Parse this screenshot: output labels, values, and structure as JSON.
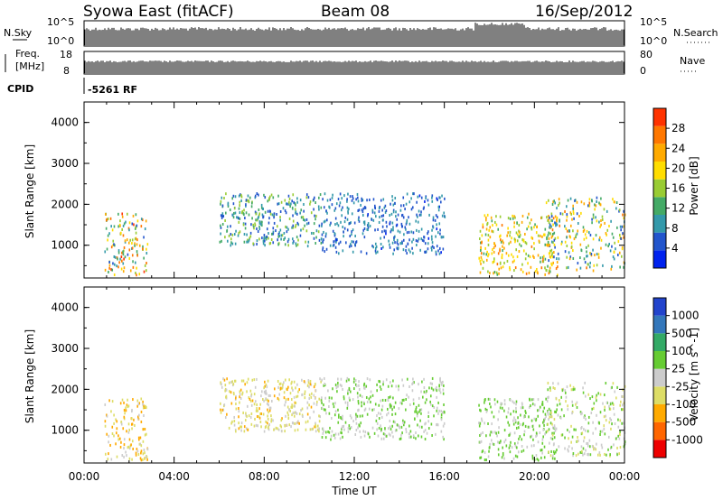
{
  "header": {
    "station": "Syowa East (fitACF)",
    "beam": "Beam 08",
    "date": "16/Sep/2012"
  },
  "top_panels": {
    "nsky_label": "N.Sky",
    "nsky_low_tick": "10^0",
    "nsky_high_tick": "10^5",
    "nsearch_label": "N.Search",
    "nsearch_low_tick": "10^0",
    "nsearch_high_tick": "10^5",
    "freq_label_line1": "Freq.",
    "freq_label_line2": "[MHz]",
    "freq_high_tick": "18",
    "freq_low_tick": "8",
    "nave_label": "Nave",
    "nave_high_tick": "80",
    "nave_low_tick": "0",
    "cpid_label": "CPID",
    "cpid_value": "-5261 RF"
  },
  "colors": {
    "power_bar": [
      "#0022ee",
      "#2255cc",
      "#3399aa",
      "#44aa66",
      "#99cc33",
      "#ffdd00",
      "#ffaa00",
      "#ff7700",
      "#ff3300"
    ],
    "velocity_bar": [
      "#ee0000",
      "#ff6600",
      "#ffaa00",
      "#dddd66",
      "#cccccc",
      "#66cc33",
      "#33aa66",
      "#3377bb",
      "#2244cc"
    ]
  },
  "chart_data": [
    {
      "type": "heatmap",
      "name": "power",
      "ylabel": "Slant Range [km]",
      "ylim": [
        200,
        4500
      ],
      "yticks": [
        "1000",
        "2000",
        "3000",
        "4000"
      ],
      "xlim_hours": [
        0,
        24
      ],
      "colorbar_label": "Power [dB]",
      "colorbar_ticks": [
        "4",
        "8",
        "12",
        "16",
        "20",
        "24",
        "28"
      ],
      "colorbar_range": [
        0,
        30
      ],
      "regions": [
        {
          "t": [
            0.9,
            2.8
          ],
          "r": [
            300,
            1800
          ],
          "v": [
            6,
            28
          ]
        },
        {
          "t": [
            6.0,
            10.5
          ],
          "r": [
            1000,
            2300
          ],
          "v": [
            4,
            16
          ]
        },
        {
          "t": [
            10.5,
            16.0
          ],
          "r": [
            800,
            2300
          ],
          "v": [
            3,
            10
          ]
        },
        {
          "t": [
            17.5,
            21.0
          ],
          "r": [
            300,
            1800
          ],
          "v": [
            12,
            24
          ]
        },
        {
          "t": [
            20.5,
            24.0
          ],
          "r": [
            400,
            2200
          ],
          "v": [
            4,
            24
          ]
        }
      ]
    },
    {
      "type": "heatmap",
      "name": "velocity",
      "ylabel": "Slant Range [km]",
      "ylim": [
        200,
        4500
      ],
      "yticks": [
        "1000",
        "2000",
        "3000",
        "4000"
      ],
      "xlim_hours": [
        0,
        24
      ],
      "xlabel": "Time UT",
      "xticks": [
        "00:00",
        "04:00",
        "08:00",
        "12:00",
        "16:00",
        "20:00",
        "00:00"
      ],
      "colorbar_label": "Velocity [m s^-1]",
      "colorbar_ticks": [
        "-1000",
        "-500",
        "-100",
        "-25",
        "25",
        "100",
        "500",
        "1000"
      ],
      "colorbar_range": [
        -1200,
        1200
      ],
      "regions": [
        {
          "t": [
            0.9,
            2.8
          ],
          "r": [
            300,
            1800
          ],
          "v": [
            -600,
            -50
          ]
        },
        {
          "t": [
            6.0,
            10.5
          ],
          "r": [
            1000,
            2300
          ],
          "v": [
            -500,
            50
          ]
        },
        {
          "t": [
            10.5,
            16.0
          ],
          "r": [
            800,
            2300
          ],
          "v": [
            -20,
            300
          ]
        },
        {
          "t": [
            17.5,
            21.0
          ],
          "r": [
            300,
            1800
          ],
          "v": [
            30,
            300
          ]
        },
        {
          "t": [
            20.5,
            24.0
          ],
          "r": [
            400,
            2200
          ],
          "v": [
            -300,
            300
          ]
        }
      ]
    }
  ]
}
